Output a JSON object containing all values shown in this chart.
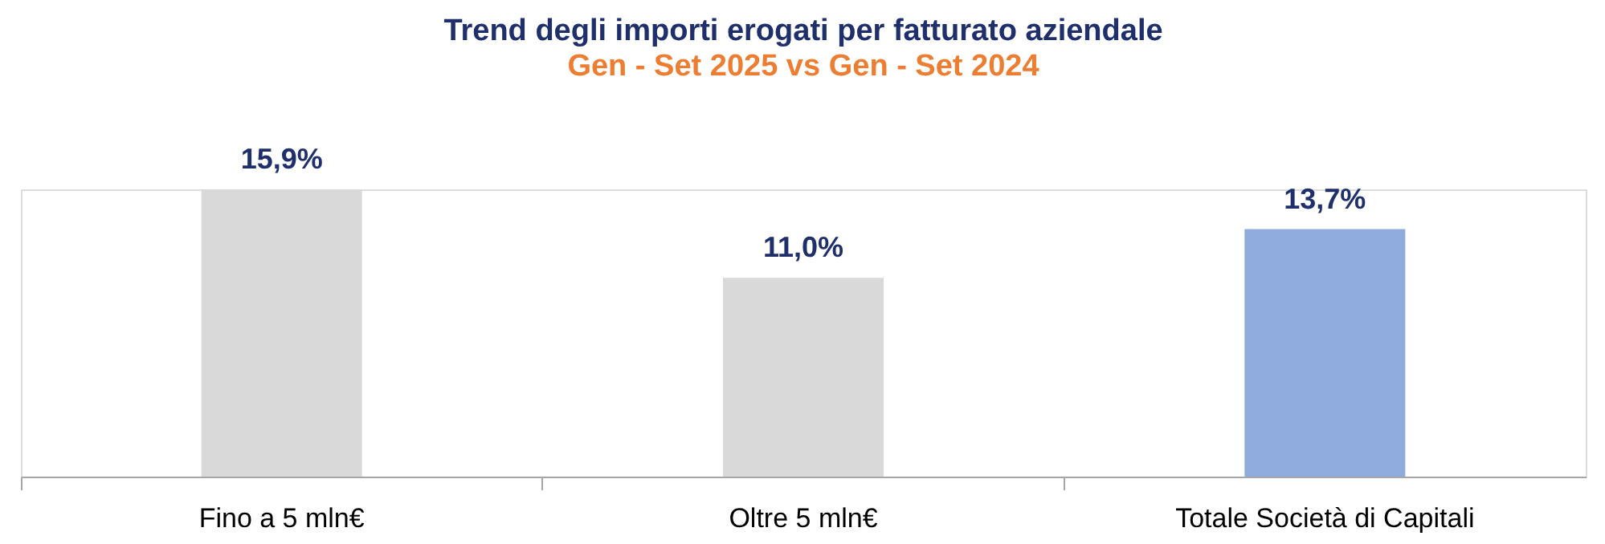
{
  "chart_data": {
    "type": "bar",
    "title": "Trend degli importi erogati per fatturato aziendale",
    "subtitle": "Gen - Set 2025 vs Gen - Set 2024",
    "categories": [
      "Fino a 5 mln€",
      "Oltre 5 mln€",
      "Totale Società di Capitali"
    ],
    "values": [
      15.9,
      11.0,
      13.7
    ],
    "colors": [
      "#d9d9d9",
      "#d9d9d9",
      "#8faadc"
    ],
    "value_labels": [
      "15,9%",
      "11,0%",
      "13,7%"
    ],
    "grid": false,
    "legend": false
  }
}
